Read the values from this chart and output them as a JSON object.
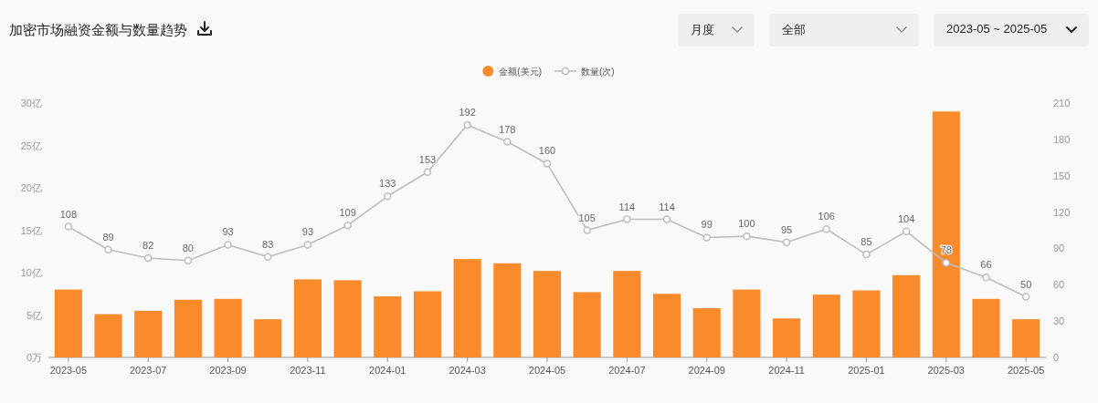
{
  "chart_data": {
    "type": "bar",
    "title": "加密市场融资金额与数量趋势",
    "categories": [
      "2023-05",
      null,
      "2023-07",
      null,
      "2023-09",
      null,
      "2023-11",
      null,
      "2024-01",
      null,
      "2024-03",
      null,
      "2024-05",
      null,
      "2024-07",
      null,
      "2024-09",
      null,
      "2024-11",
      null,
      "2025-01",
      null,
      "2025-03",
      null,
      "2025-05"
    ],
    "series": [
      {
        "name": "金额(美元)",
        "color": "#f98b2c",
        "values": [
          8.0,
          5.1,
          5.5,
          6.8,
          6.9,
          4.5,
          9.2,
          9.1,
          7.2,
          7.8,
          11.6,
          11.1,
          10.2,
          7.7,
          10.2,
          7.5,
          5.8,
          8.0,
          4.6,
          7.4,
          7.9,
          9.7,
          29.0,
          6.9,
          4.5
        ]
      },
      {
        "name": "数量(次)",
        "type": "line",
        "axis": "y2",
        "color": "#bdbdbd",
        "values": [
          108,
          89,
          82,
          80,
          93,
          83,
          93,
          109,
          133,
          153,
          192,
          178,
          160,
          105,
          114,
          114,
          99,
          100,
          95,
          106,
          85,
          104,
          78,
          66,
          50
        ],
        "value_labels": [
          "108",
          "89",
          "82",
          "80",
          "93",
          "83",
          "93",
          "109",
          "133",
          "153",
          "192",
          "178",
          "160",
          "105",
          "114",
          "114",
          "99",
          "100",
          "95",
          "106",
          "85",
          "104",
          "78",
          "66",
          "50"
        ]
      }
    ],
    "ylim": [
      0,
      30
    ],
    "yticks": [
      {
        "value": 0,
        "label": "0万"
      },
      {
        "value": 5,
        "label": "5亿"
      },
      {
        "value": 10,
        "label": "10亿"
      },
      {
        "value": 15,
        "label": "15亿"
      },
      {
        "value": 20,
        "label": "20亿"
      },
      {
        "value": 25,
        "label": "25亿"
      },
      {
        "value": 30,
        "label": "30亿"
      }
    ],
    "y2lim": [
      0,
      210
    ],
    "y2ticks": [
      0,
      30,
      60,
      90,
      120,
      150,
      180,
      210
    ],
    "legend": "top",
    "marker": "circle",
    "annotations": [
      "月度",
      "全部",
      "2023-05 ~ 2025-05"
    ]
  }
}
